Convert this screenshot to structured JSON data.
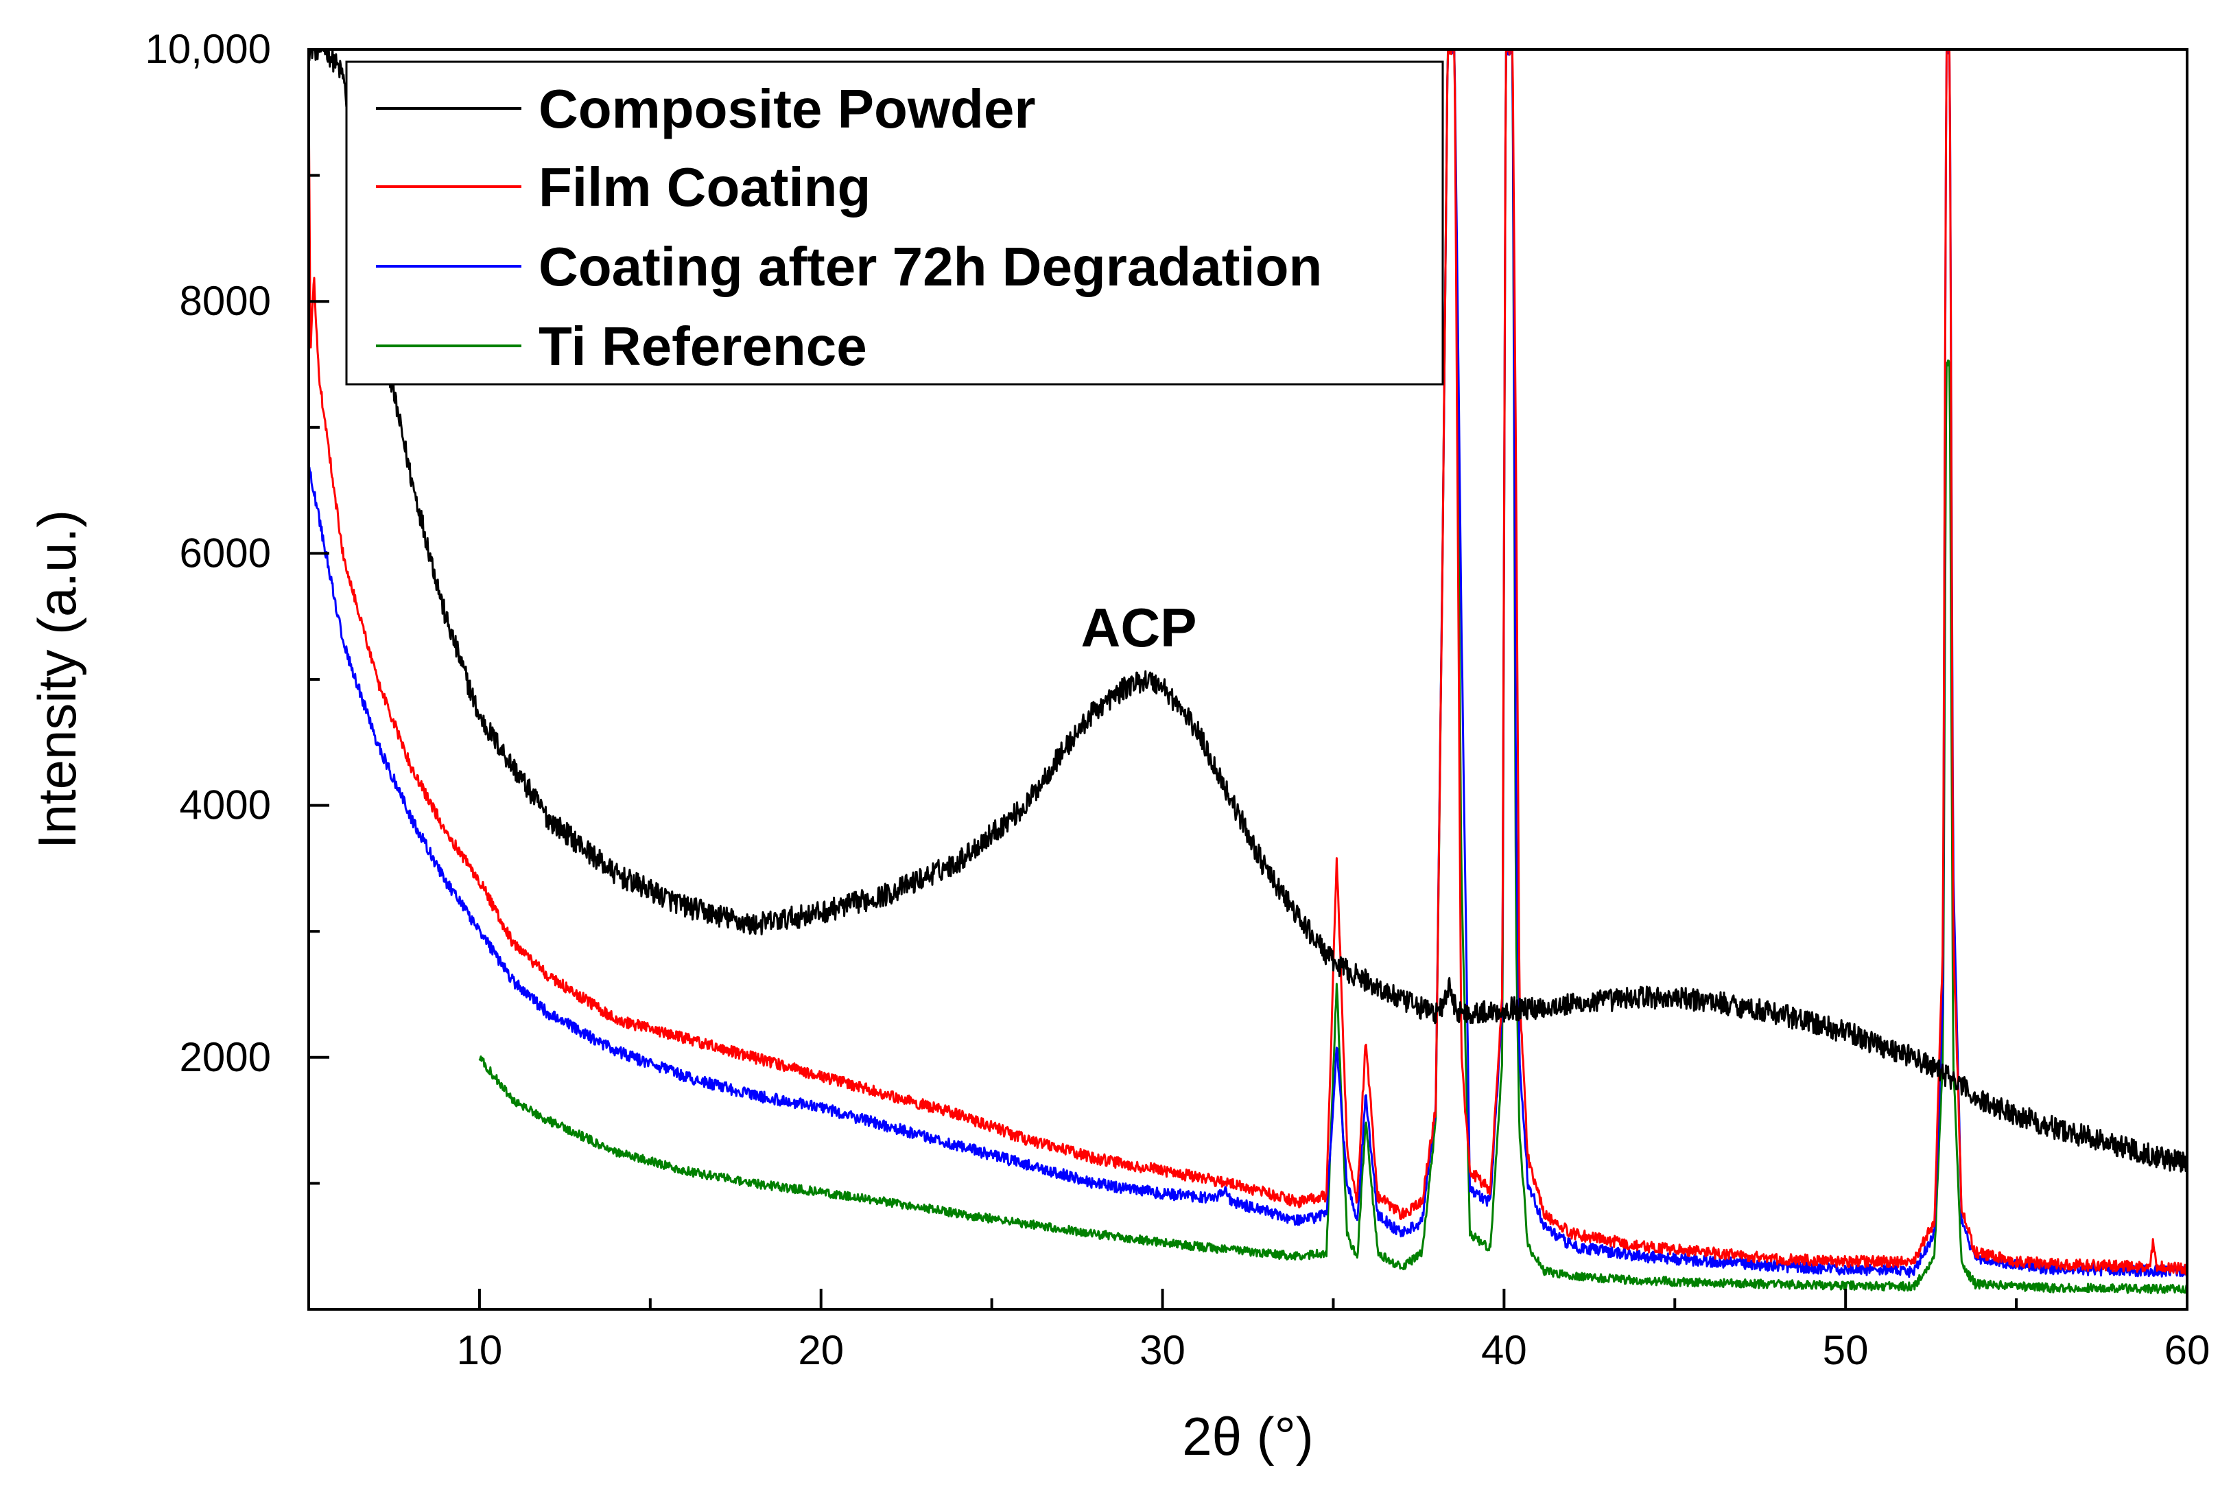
{
  "chart_data": {
    "type": "line",
    "title": "",
    "xlabel": "2θ (°)",
    "ylabel": "Intensity (a.u.)",
    "xlim": [
      5,
      60
    ],
    "ylim": [
      0,
      10000
    ],
    "x_ticks": [
      10,
      20,
      30,
      40,
      50,
      60
    ],
    "y_ticks": [
      2000,
      4000,
      6000,
      8000,
      10000
    ],
    "x_tick_labels": [
      "10",
      "20",
      "30",
      "40",
      "50",
      "60"
    ],
    "y_tick_labels": [
      "2000",
      "4000",
      "6000",
      "8000",
      "10,000"
    ],
    "legend_position": "top-left",
    "annotations": [
      {
        "text": "ACP",
        "x": 29.5,
        "y": 5300
      }
    ],
    "series": [
      {
        "name": "Composite Powder",
        "color": "#000000",
        "noise": 90,
        "x": [
          5,
          5.5,
          6,
          6.5,
          7,
          8,
          9,
          10,
          12,
          14,
          16,
          18,
          20,
          22,
          24,
          26,
          27,
          28,
          29,
          29.5,
          30,
          31,
          32,
          33,
          34,
          35,
          36,
          37,
          38,
          38.2,
          38.4,
          38.6,
          38.8,
          39,
          40,
          40.2,
          40.4,
          42,
          44,
          46,
          48,
          50,
          52,
          53,
          54,
          56,
          58,
          60
        ],
        "y": [
          10000,
          10000,
          9800,
          8800,
          7900,
          6600,
          5500,
          4700,
          3900,
          3450,
          3200,
          3050,
          3150,
          3300,
          3550,
          4000,
          4400,
          4750,
          4950,
          5000,
          4950,
          4600,
          4050,
          3500,
          3100,
          2750,
          2600,
          2450,
          2350,
          2400,
          2550,
          2380,
          2350,
          2350,
          2370,
          2400,
          2380,
          2420,
          2480,
          2450,
          2350,
          2200,
          2000,
          1850,
          1650,
          1450,
          1300,
          1150
        ]
      },
      {
        "name": "Film Coating",
        "color": "#ff0000",
        "noise": 45,
        "x": [
          5,
          5.05,
          5.15,
          5.3,
          6,
          7,
          8,
          9,
          10,
          11,
          12,
          14,
          16,
          18,
          20,
          22,
          24,
          26,
          28,
          30,
          32,
          34,
          34.8,
          35.1,
          35.4,
          35.7,
          35.95,
          36.3,
          37,
          37.6,
          38.0,
          38.2,
          38.35,
          38.55,
          38.75,
          39.0,
          39.6,
          39.95,
          40.05,
          40.15,
          40.25,
          40.35,
          40.45,
          40.7,
          41.2,
          42,
          44,
          46,
          48,
          50,
          52,
          52.6,
          52.85,
          52.95,
          53.05,
          53.15,
          53.4,
          53.8,
          55,
          57,
          58.9,
          59.0,
          59.1,
          60
        ],
        "y": [
          9700,
          7600,
          8200,
          7400,
          6000,
          5000,
          4300,
          3800,
          3400,
          2900,
          2650,
          2300,
          2150,
          2000,
          1850,
          1700,
          1550,
          1350,
          1200,
          1100,
          1000,
          850,
          900,
          3600,
          1300,
          850,
          2150,
          900,
          750,
          850,
          1600,
          6000,
          10000,
          10000,
          2000,
          1100,
          950,
          2500,
          10000,
          10000,
          10000,
          6700,
          2500,
          1200,
          750,
          600,
          500,
          450,
          400,
          380,
          380,
          700,
          2900,
          10000,
          10000,
          3000,
          800,
          450,
          380,
          350,
          340,
          520,
          340,
          320
        ]
      },
      {
        "name": "Coating after 72h Degradation",
        "color": "#0000ff",
        "noise": 45,
        "x": [
          5,
          6,
          7,
          8,
          9,
          10,
          11,
          12,
          14,
          16,
          18,
          20,
          22,
          24,
          26,
          28,
          30,
          31.5,
          31.8,
          32,
          34,
          34.8,
          35.1,
          35.4,
          35.7,
          35.95,
          36.3,
          37,
          37.6,
          38.0,
          38.2,
          38.35,
          38.55,
          38.75,
          39.0,
          39.6,
          39.95,
          40.05,
          40.15,
          40.25,
          40.35,
          40.45,
          40.7,
          41.2,
          42,
          44,
          46,
          48,
          50,
          52,
          52.6,
          52.85,
          52.95,
          53.05,
          53.15,
          53.4,
          53.8,
          56,
          60
        ],
        "y": [
          6700,
          5300,
          4500,
          3900,
          3400,
          3000,
          2600,
          2350,
          2050,
          1850,
          1700,
          1600,
          1450,
          1300,
          1150,
          1000,
          920,
          880,
          950,
          860,
          700,
          750,
          2100,
          1000,
          700,
          1700,
          750,
          600,
          700,
          1600,
          6000,
          10000,
          10000,
          5500,
          950,
          850,
          2400,
          10000,
          10000,
          10000,
          4000,
          2000,
          1000,
          650,
          500,
          420,
          380,
          340,
          320,
          300,
          600,
          2500,
          10000,
          10000,
          3500,
          700,
          400,
          320,
          300
        ]
      },
      {
        "name": "Ti Reference",
        "color": "#008000",
        "noise": 35,
        "x": [
          10,
          11,
          12,
          14,
          16,
          18,
          20,
          22,
          24,
          26,
          28,
          30,
          32,
          34,
          34.8,
          35.1,
          35.4,
          35.7,
          35.95,
          36.3,
          37,
          37.6,
          38.0,
          38.2,
          38.35,
          38.55,
          38.75,
          39.0,
          39.6,
          39.95,
          40.05,
          40.15,
          40.25,
          40.35,
          40.45,
          40.7,
          41.2,
          42,
          44,
          46,
          48,
          50,
          52,
          52.6,
          52.85,
          52.95,
          53.05,
          53.15,
          53.4,
          53.8,
          56,
          60
        ],
        "y": [
          2000,
          1650,
          1500,
          1250,
          1100,
          1000,
          930,
          850,
          760,
          680,
          600,
          530,
          470,
          420,
          450,
          2600,
          600,
          400,
          1500,
          450,
          330,
          450,
          1500,
          6000,
          10000,
          10000,
          3500,
          600,
          480,
          2000,
          10000,
          10000,
          10000,
          3000,
          1400,
          500,
          300,
          260,
          230,
          210,
          200,
          190,
          180,
          400,
          2000,
          7500,
          7500,
          2000,
          350,
          200,
          170,
          160
        ]
      }
    ]
  }
}
